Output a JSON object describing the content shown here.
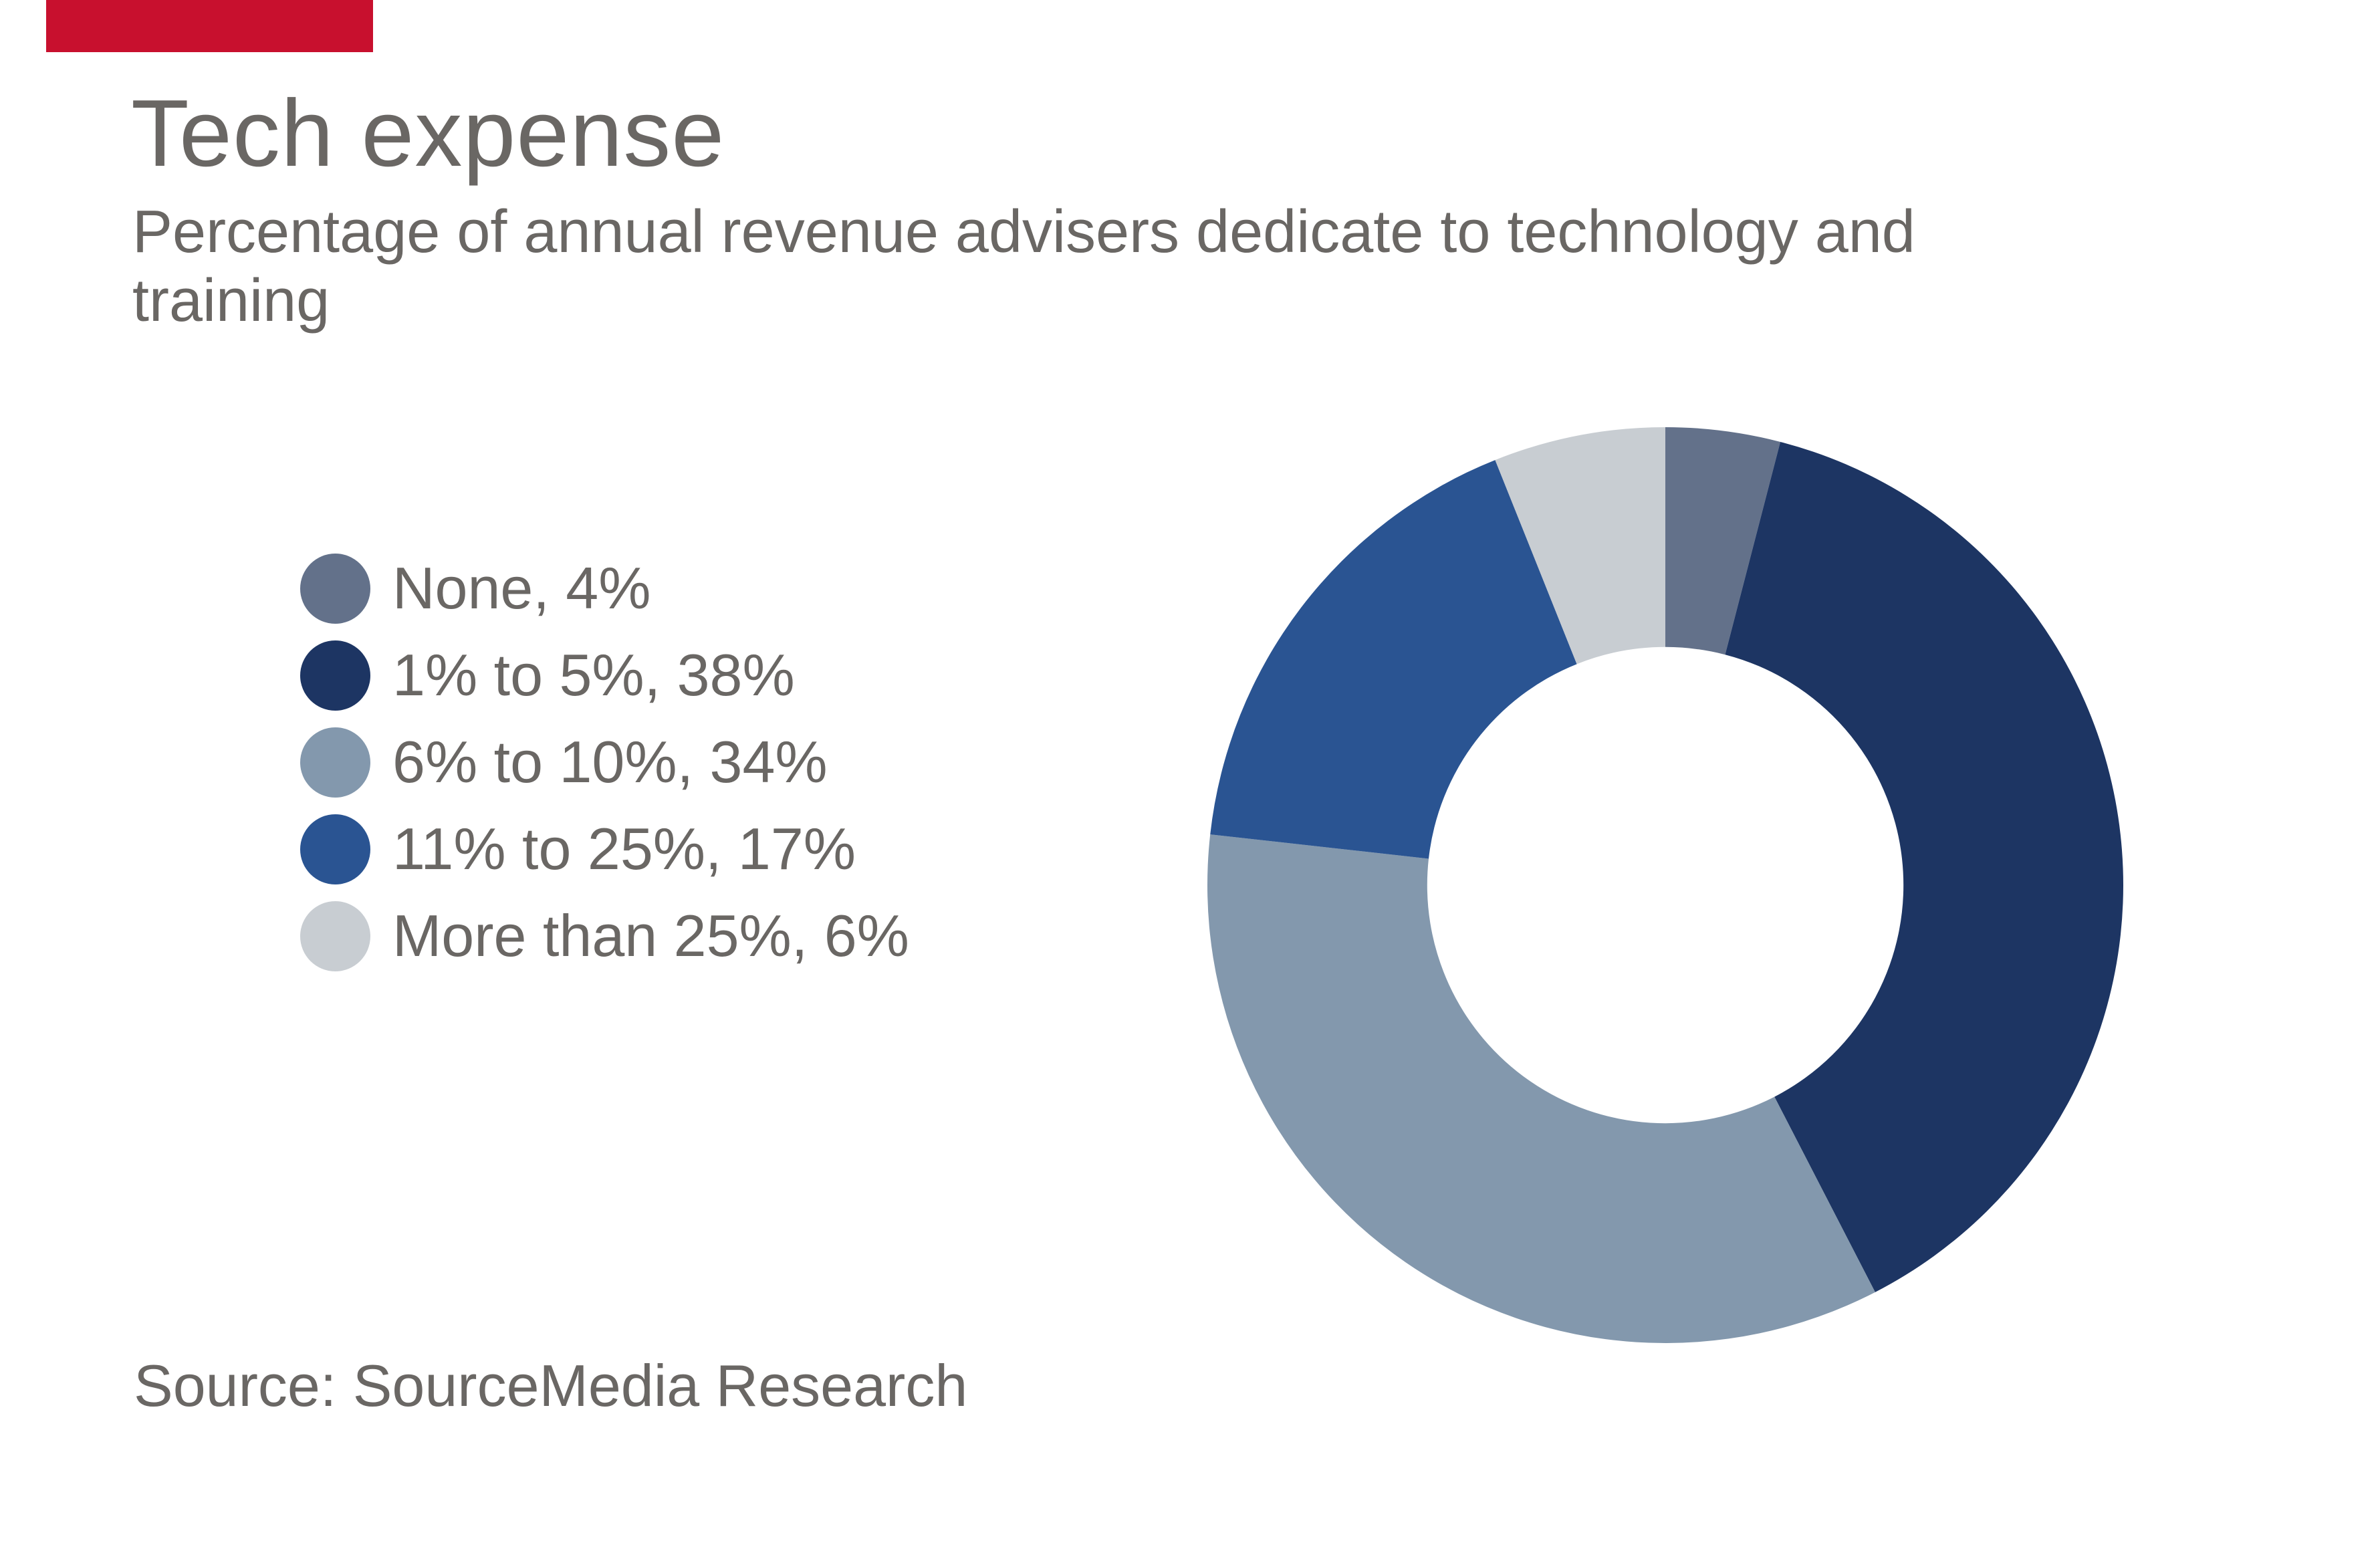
{
  "brand": {
    "accent_red": "#C8102E",
    "text_gray": "#6A6764",
    "background": "#FFFFFF"
  },
  "header": {
    "title": "Tech expense",
    "subtitle_line1": "Percentage of annual revenue advisers dedicate to technology and",
    "subtitle_line2": "training"
  },
  "source": {
    "label": "Source: SourceMedia Research"
  },
  "chart_data": {
    "type": "pie",
    "variant": "donut",
    "title": "Tech expense",
    "subtitle": "Percentage of annual revenue advisers dedicate to technology and training",
    "categories": [
      "None",
      "1% to 5%",
      "6% to 10%",
      "11% to 25%",
      "More than 25%"
    ],
    "values": [
      4,
      38,
      34,
      17,
      6
    ],
    "unit": "%",
    "colors": [
      "#63718A",
      "#1D3563",
      "#8398AD",
      "#2A5492",
      "#C8CDD2"
    ],
    "start_angle_deg": 0,
    "direction": "clockwise",
    "donut_hole_ratio": 0.52,
    "legend_position": "left",
    "legend": [
      {
        "label": "None, 4%",
        "color": "#63718A"
      },
      {
        "label": "1% to 5%, 38%",
        "color": "#1D3563"
      },
      {
        "label": "6% to 10%, 34%",
        "color": "#8398AD"
      },
      {
        "label": "11% to 25%, 17%",
        "color": "#2A5492"
      },
      {
        "label": "More than 25%, 6%",
        "color": "#C8CDD2"
      }
    ],
    "source": "Source: SourceMedia Research"
  }
}
